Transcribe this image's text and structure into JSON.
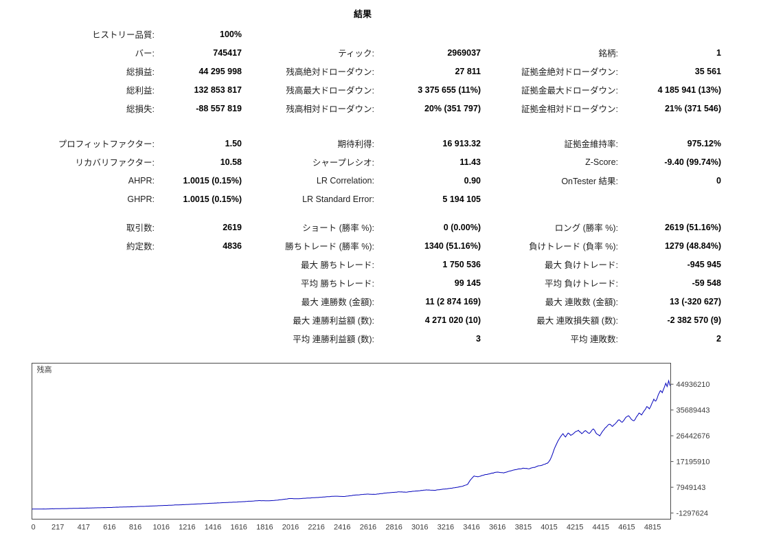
{
  "title": "結果",
  "stats": {
    "sections": [
      {
        "rows": [
          [
            "ヒストリー品質:",
            "100%",
            "",
            "",
            "",
            ""
          ],
          [
            "バー:",
            "745417",
            "ティック:",
            "2969037",
            "銘柄:",
            "1"
          ],
          [
            "総損益:",
            "44 295 998",
            "残高絶対ドローダウン:",
            "27 811",
            "証拠金絶対ドローダウン:",
            "35 561"
          ],
          [
            "総利益:",
            "132 853 817",
            "残高最大ドローダウン:",
            "3 375 655 (11%)",
            "証拠金最大ドローダウン:",
            "4 185 941 (13%)"
          ],
          [
            "総損失:",
            "-88 557 819",
            "残高相対ドローダウン:",
            "20% (351 797)",
            "証拠金相対ドローダウン:",
            "21% (371 546)"
          ]
        ]
      },
      {
        "rows": [
          [
            "プロフィットファクター:",
            "1.50",
            "期待利得:",
            "16 913.32",
            "証拠金維持率:",
            "975.12%"
          ],
          [
            "リカバリファクター:",
            "10.58",
            "シャープレシオ:",
            "11.43",
            "Z-Score:",
            "-9.40 (99.74%)"
          ],
          [
            "AHPR:",
            "1.0015 (0.15%)",
            "LR Correlation:",
            "0.90",
            "OnTester 結果:",
            "0"
          ],
          [
            "GHPR:",
            "1.0015 (0.15%)",
            "LR Standard Error:",
            "5 194 105",
            "",
            ""
          ]
        ]
      },
      {
        "rows": [
          [
            "取引数:",
            "2619",
            "ショート (勝率 %):",
            "0 (0.00%)",
            "ロング (勝率 %):",
            "2619 (51.16%)"
          ],
          [
            "約定数:",
            "4836",
            "勝ちトレード (勝率 %):",
            "1340 (51.16%)",
            "負けトレード (負率 %):",
            "1279 (48.84%)"
          ],
          [
            "",
            "",
            "最大 勝ちトレード:",
            "1 750 536",
            "最大 負けトレード:",
            "-945 945"
          ],
          [
            "",
            "",
            "平均 勝ちトレード:",
            "99 145",
            "平均 負けトレード:",
            "-59 548"
          ],
          [
            "",
            "",
            "最大 連勝数 (金額):",
            "11 (2 874 169)",
            "最大 連敗数 (金額):",
            "13 (-320 627)"
          ],
          [
            "",
            "",
            "最大 連勝利益額 (数):",
            "4 271 020 (10)",
            "最大 連敗損失額 (数):",
            "-2 382 570 (9)"
          ],
          [
            "",
            "",
            "平均 連勝利益額 (数):",
            "3",
            "平均 連敗数:",
            "2"
          ]
        ]
      }
    ]
  },
  "chart_data": {
    "type": "line",
    "title": "残高",
    "xlabel": "",
    "ylabel": "",
    "grid": false,
    "legend": "none",
    "line_color": "#0000bb",
    "border_color": "#4a4a4a",
    "x_tick_labels": [
      "0",
      "217",
      "417",
      "616",
      "816",
      "1016",
      "1216",
      "1416",
      "1616",
      "1816",
      "2016",
      "2216",
      "2416",
      "2616",
      "2816",
      "3016",
      "3216",
      "3416",
      "3616",
      "3815",
      "4015",
      "4215",
      "4415",
      "4615",
      "4815"
    ],
    "y_tick_values": [
      44936210,
      35689443,
      26442676,
      17195910,
      7949143,
      -1297624
    ],
    "xlim": [
      0,
      4950
    ],
    "ylim": [
      -3500000,
      52500000
    ],
    "series": [
      {
        "name": "残高",
        "points": [
          [
            0,
            100000
          ],
          [
            100,
            160000
          ],
          [
            200,
            250000
          ],
          [
            300,
            340000
          ],
          [
            400,
            450000
          ],
          [
            500,
            560000
          ],
          [
            600,
            700000
          ],
          [
            700,
            850000
          ],
          [
            800,
            1000000
          ],
          [
            900,
            1170000
          ],
          [
            1000,
            1350000
          ],
          [
            1100,
            1560000
          ],
          [
            1200,
            1780000
          ],
          [
            1300,
            2000000
          ],
          [
            1400,
            2220000
          ],
          [
            1500,
            2450000
          ],
          [
            1600,
            2700000
          ],
          [
            1700,
            2950000
          ],
          [
            1760,
            3150000
          ],
          [
            1820,
            3080000
          ],
          [
            1900,
            3300000
          ],
          [
            2000,
            3900000
          ],
          [
            2060,
            3820000
          ],
          [
            2150,
            4100000
          ],
          [
            2250,
            4400000
          ],
          [
            2350,
            4750000
          ],
          [
            2420,
            4650000
          ],
          [
            2500,
            5100000
          ],
          [
            2600,
            5500000
          ],
          [
            2660,
            5400000
          ],
          [
            2750,
            5900000
          ],
          [
            2850,
            6300000
          ],
          [
            2900,
            6200000
          ],
          [
            3000,
            6700000
          ],
          [
            3060,
            7000000
          ],
          [
            3120,
            6850000
          ],
          [
            3200,
            7300000
          ],
          [
            3280,
            7800000
          ],
          [
            3340,
            8300000
          ],
          [
            3380,
            9000000
          ],
          [
            3400,
            10500000
          ],
          [
            3430,
            12000000
          ],
          [
            3460,
            11700000
          ],
          [
            3510,
            12400000
          ],
          [
            3560,
            12900000
          ],
          [
            3610,
            13400000
          ],
          [
            3660,
            13100000
          ],
          [
            3710,
            13800000
          ],
          [
            3760,
            14300000
          ],
          [
            3810,
            14800000
          ],
          [
            3860,
            14600000
          ],
          [
            3910,
            15300000
          ],
          [
            3960,
            15900000
          ],
          [
            4000,
            16600000
          ],
          [
            4020,
            17800000
          ],
          [
            4040,
            20000000
          ],
          [
            4060,
            22500000
          ],
          [
            4080,
            24500000
          ],
          [
            4100,
            26000000
          ],
          [
            4120,
            27200000
          ],
          [
            4140,
            26000000
          ],
          [
            4160,
            27400000
          ],
          [
            4180,
            26600000
          ],
          [
            4210,
            27600000
          ],
          [
            4240,
            28400000
          ],
          [
            4265,
            27200000
          ],
          [
            4295,
            28300000
          ],
          [
            4325,
            27300000
          ],
          [
            4355,
            28900000
          ],
          [
            4385,
            27000000
          ],
          [
            4405,
            26400000
          ],
          [
            4430,
            28200000
          ],
          [
            4455,
            29500000
          ],
          [
            4480,
            30600000
          ],
          [
            4505,
            29800000
          ],
          [
            4530,
            31000000
          ],
          [
            4555,
            32200000
          ],
          [
            4580,
            31300000
          ],
          [
            4605,
            32900000
          ],
          [
            4630,
            33600000
          ],
          [
            4650,
            32400000
          ],
          [
            4670,
            31800000
          ],
          [
            4690,
            33200000
          ],
          [
            4710,
            34600000
          ],
          [
            4730,
            33900000
          ],
          [
            4750,
            35400000
          ],
          [
            4770,
            36900000
          ],
          [
            4790,
            36100000
          ],
          [
            4810,
            38100000
          ],
          [
            4825,
            39600000
          ],
          [
            4840,
            38900000
          ],
          [
            4860,
            41200000
          ],
          [
            4875,
            42600000
          ],
          [
            4890,
            41900000
          ],
          [
            4905,
            43700000
          ],
          [
            4918,
            45300000
          ],
          [
            4928,
            44100000
          ],
          [
            4940,
            46200000
          ],
          [
            4950,
            44400000
          ]
        ]
      }
    ]
  }
}
